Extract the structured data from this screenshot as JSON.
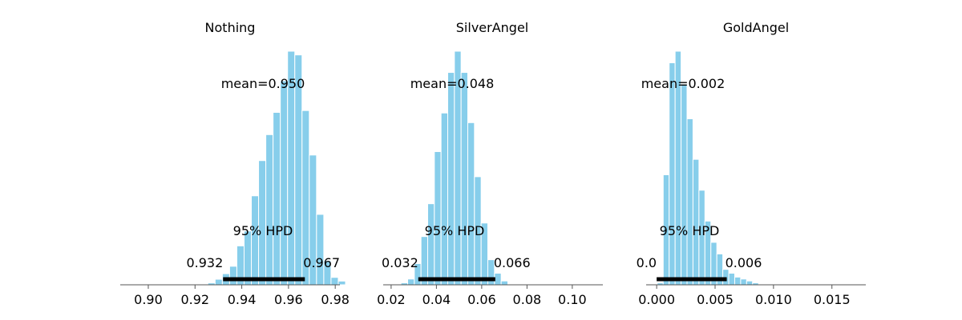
{
  "chart_data": [
    {
      "type": "bar",
      "title": "Nothing",
      "mean_label": "mean=0.950",
      "hpd_label": "95% HPD",
      "hpd_low_label": "0.932",
      "hpd_high_label": "0.967",
      "hpd": [
        0.932,
        0.967
      ],
      "xlim": [
        0.888,
        0.982
      ],
      "xticks": [
        0.9,
        0.92,
        0.94,
        0.96,
        0.98
      ],
      "xtick_labels": [
        "0.90",
        "0.92",
        "0.94",
        "0.96",
        "0.98"
      ],
      "bin_start": 0.9255,
      "bin_width": 0.0031,
      "counts": [
        1,
        3,
        6,
        10,
        21,
        29,
        48,
        67,
        81,
        93,
        110,
        126,
        124,
        94,
        70,
        38,
        13,
        4,
        2
      ],
      "bar_color": "#87ceeb"
    },
    {
      "type": "bar",
      "title": "SilverAngel",
      "mean_label": "mean=0.048",
      "hpd_label": "95% HPD",
      "hpd_low_label": "0.032",
      "hpd_high_label": "0.066",
      "hpd": [
        0.032,
        0.066
      ],
      "xlim": [
        0.0165,
        0.1135
      ],
      "xticks": [
        0.02,
        0.04,
        0.06,
        0.08,
        0.1
      ],
      "xtick_labels": [
        "0.02",
        "0.04",
        "0.06",
        "0.08",
        "0.10"
      ],
      "bin_start": 0.02435,
      "bin_width": 0.00295,
      "counts": [
        1,
        3,
        11,
        25,
        42,
        69,
        89,
        110,
        121,
        110,
        84,
        56,
        32,
        13,
        6,
        2
      ],
      "bar_color": "#87ceeb"
    },
    {
      "type": "bar",
      "title": "GoldAngel",
      "mean_label": "mean=0.002",
      "hpd_label": "95% HPD",
      "hpd_low_label": "0.0",
      "hpd_high_label": "0.006",
      "hpd": [
        0.0,
        0.006
      ],
      "xlim": [
        -0.0009,
        0.0179
      ],
      "xticks": [
        0.0,
        0.005,
        0.01,
        0.015
      ],
      "xtick_labels": [
        "0.000",
        "0.005",
        "0.010",
        "0.015"
      ],
      "bin_start": 5e-05,
      "bin_width": 0.00051,
      "counts": [
        1,
        57,
        115,
        121,
        104,
        86,
        65,
        49,
        33,
        22,
        16,
        8,
        6,
        4,
        3,
        2,
        1
      ],
      "bar_color": "#87ceeb"
    }
  ]
}
